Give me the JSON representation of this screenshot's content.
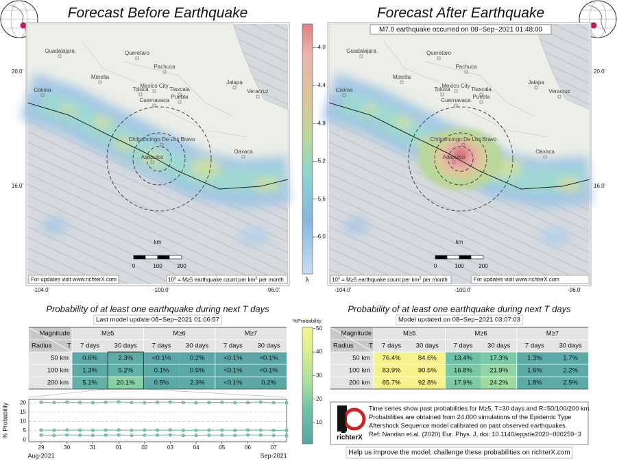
{
  "left_title": "Forecast Before Earthquake",
  "right_title": "Forecast After Earthquake",
  "banner": "M7.0 earthquake occurred on 08−Sep−2021 01:48:00",
  "map": {
    "cities": [
      "Guadalajara",
      "Queretaro",
      "Pachuca",
      "Morelia",
      "Mexico City",
      "Toluca",
      "Tlaxcala",
      "Jalapa",
      "Puebla",
      "Veracruz",
      "Cuernavaca",
      "Colima",
      "Chilpancingo De Los Bravo",
      "Acapulco",
      "Oaxaca"
    ],
    "lat_labels": [
      "20.0'",
      "16.0'"
    ],
    "lon_labels": [
      "-104.0'",
      "-100.0'",
      "-96.0'"
    ],
    "scale_unit": "km",
    "scale_labels": [
      "0",
      "100",
      "200"
    ],
    "updates_note": "For updates visit www.richterX.com",
    "count_note": [
      "10",
      "λ",
      " = M≥5 earthquake count per km",
      "2",
      " per month"
    ]
  },
  "colorbar": {
    "label": "λ",
    "lim": [
      -6.39,
      -3.75
    ],
    "ticks": [
      {
        "value": -4.0,
        "label": "-4.0"
      },
      {
        "value": -4.4,
        "label": "-4.4"
      },
      {
        "value": -4.8,
        "label": "-4.8"
      },
      {
        "value": -5.2,
        "label": "-5.2"
      },
      {
        "value": -5.6,
        "label": "-5.6"
      },
      {
        "value": -6.0,
        "label": "-6.0"
      }
    ]
  },
  "prob_colorbar": {
    "label": "%Probability",
    "lim": [
      1,
      50.5
    ],
    "ticks": [
      10,
      20,
      30,
      40,
      50
    ]
  },
  "table_headers": {
    "magnitude": "Magnitude",
    "radius": "Radius",
    "T": "T",
    "magnitudes": [
      "M≥5",
      "M≥6",
      "M≥7"
    ],
    "periods": [
      "7 days",
      "30 days"
    ],
    "radii": [
      "50 km",
      "100 km",
      "200 km"
    ]
  },
  "left_table": {
    "title": "Probability of at least one earthquake during next T days",
    "subtitle": "Last model update 08−Sep−2021 01:06:57",
    "rows": [
      [
        "0.6%",
        "2.3%",
        "<0.1%",
        "0.2%",
        "<0.1%",
        "<0.1%"
      ],
      [
        "1.3%",
        "5.2%",
        "0.1%",
        "0.5%",
        "<0.1%",
        "<0.1%"
      ],
      [
        "5.1%",
        "20.1%",
        "0.5%",
        "2.3%",
        "<0.1%",
        "0.2%"
      ]
    ]
  },
  "right_table": {
    "title": "Probability of at least one earthquake during next T days",
    "subtitle": "Model updated on 08−Sep−2021 03:07:03",
    "rows": [
      [
        "76.4%",
        "84.6%",
        "13.4%",
        "17.3%",
        "1.3%",
        "1.7%"
      ],
      [
        "83.9%",
        "90.5%",
        "16.8%",
        "21.9%",
        "1.6%",
        "2.2%"
      ],
      [
        "85.7%",
        "92.8%",
        "17.9%",
        "24.2%",
        "1.8%",
        "2.5%"
      ]
    ]
  },
  "timeseries": {
    "type": "line",
    "ylabel": "% Probability",
    "xlim": [
      -0.48,
      9.5
    ],
    "ylim": [
      -1,
      22
    ],
    "yticks": [
      0,
      5,
      10,
      15,
      20
    ],
    "xticks": [
      {
        "value": 0,
        "label": "29"
      },
      {
        "value": 1,
        "label": "30"
      },
      {
        "value": 2,
        "label": "31"
      },
      {
        "value": 3,
        "label": "01"
      },
      {
        "value": 4,
        "label": "02"
      },
      {
        "value": 5,
        "label": "03"
      },
      {
        "value": 6,
        "label": "04"
      },
      {
        "value": 7,
        "label": "05"
      },
      {
        "value": 8,
        "label": "06"
      },
      {
        "value": 9,
        "label": "07"
      }
    ],
    "months": [
      {
        "value": 0,
        "label": "Aug-2021"
      },
      {
        "value": 9,
        "label": "Sep-2021"
      }
    ],
    "grid": true,
    "x": [
      0,
      0.5,
      1,
      1.5,
      2,
      2.5,
      3,
      3.5,
      4,
      4.5,
      5,
      5.5,
      6,
      6.5,
      7,
      7.5,
      8,
      8.5,
      9,
      9.5
    ],
    "series": [
      {
        "color": "#7cc9a6",
        "values": [
          20.4,
          20.2,
          20.5,
          20.3,
          20.1,
          20.4,
          20.6,
          20.3,
          20.2,
          20.4,
          20.5,
          20.3,
          20.1,
          20.3,
          20.4,
          20.2,
          20.3,
          20.5,
          20.2,
          20.1
        ]
      },
      {
        "color": "#7cc9a6",
        "values": [
          5.3,
          5.2,
          5.4,
          5.3,
          5.2,
          5.3,
          5.4,
          5.2,
          5.3,
          5.3,
          5.4,
          5.2,
          5.2,
          5.3,
          5.3,
          5.2,
          5.4,
          5.3,
          5.2,
          5.2
        ]
      },
      {
        "color": "#7cc9a6",
        "values": [
          2.6,
          2.5,
          2.7,
          2.6,
          2.5,
          2.6,
          2.7,
          2.5,
          2.6,
          2.6,
          2.7,
          2.5,
          2.5,
          2.6,
          2.6,
          2.5,
          2.7,
          2.6,
          2.5,
          2.3
        ]
      }
    ]
  },
  "info": {
    "lines": [
      "Time series show past probabilities for M≥5, T=30 days and R=50/100/200 km.",
      "Probabilities are obtained from 24,000 simulations of the Epidemic Type",
      "Aftershock Sequence model calibrated on past observed earthquakes.",
      "Ref: Nandan et.al. (2020) Eur. Phys. J, doi: 10.1140/epjst/e2020−000259−3"
    ],
    "logo": "richterX",
    "help": "Help us improve the model: challenge these probabilities on richterX.com"
  }
}
